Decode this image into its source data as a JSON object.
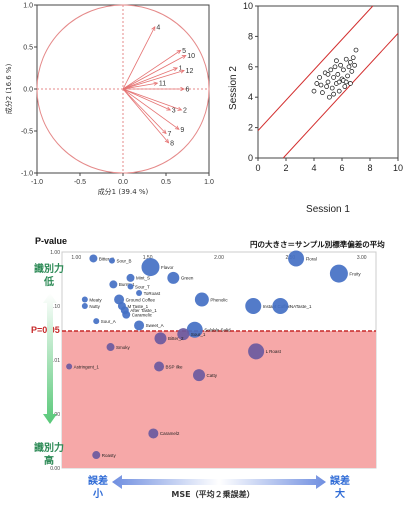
{
  "pca": {
    "type": "scatter",
    "xlabel": "成分1 (39.4 %)",
    "ylabel": "成分2 (16.6 %)",
    "xlim": [
      -1.0,
      1.0
    ],
    "ylim": [
      -1.0,
      1.0
    ],
    "xticks": [
      "-1.0",
      "-0.5",
      "0.0",
      "0.5",
      "1.0"
    ],
    "yticks": [
      "1.0",
      "0.5",
      "0.0",
      "-0.5",
      "-1.0"
    ],
    "loadings": [
      {
        "label": "4",
        "x": 0.37,
        "y": 0.74
      },
      {
        "label": "5",
        "x": 0.67,
        "y": 0.46
      },
      {
        "label": "10",
        "x": 0.73,
        "y": 0.4
      },
      {
        "label": "1",
        "x": 0.63,
        "y": 0.25
      },
      {
        "label": "12",
        "x": 0.71,
        "y": 0.22
      },
      {
        "label": "11",
        "x": 0.4,
        "y": 0.07
      },
      {
        "label": "6",
        "x": 0.71,
        "y": 0.0
      },
      {
        "label": "3",
        "x": 0.55,
        "y": -0.25
      },
      {
        "label": "2",
        "x": 0.68,
        "y": -0.25
      },
      {
        "label": "9",
        "x": 0.65,
        "y": -0.48
      },
      {
        "label": "7",
        "x": 0.5,
        "y": -0.53
      },
      {
        "label": "8",
        "x": 0.53,
        "y": -0.64
      }
    ]
  },
  "session": {
    "type": "scatter",
    "xlabel": "Session 1",
    "ylabel": "Session 2",
    "xlim": [
      0,
      10
    ],
    "ylim": [
      0,
      10
    ],
    "xticks": [
      "0",
      "2",
      "4",
      "6",
      "8",
      "10"
    ],
    "yticks": [
      "10",
      "8",
      "6",
      "4",
      "2",
      "0"
    ],
    "lines": [
      {
        "from": [
          0,
          1.8
        ],
        "to": [
          8.2,
          10
        ]
      },
      {
        "from": [
          1.8,
          0
        ],
        "to": [
          10,
          8.2
        ]
      }
    ],
    "points": [
      [
        4.0,
        4.4
      ],
      [
        4.2,
        4.9
      ],
      [
        4.4,
        5.3
      ],
      [
        4.6,
        4.3
      ],
      [
        4.8,
        5.6
      ],
      [
        5.0,
        5.0
      ],
      [
        5.1,
        4.0
      ],
      [
        5.2,
        5.8
      ],
      [
        5.3,
        4.6
      ],
      [
        5.4,
        5.3
      ],
      [
        5.5,
        6.0
      ],
      [
        5.6,
        4.9
      ],
      [
        5.7,
        5.5
      ],
      [
        5.8,
        4.4
      ],
      [
        5.9,
        6.1
      ],
      [
        6.0,
        5.2
      ],
      [
        6.1,
        5.8
      ],
      [
        6.2,
        4.7
      ],
      [
        6.3,
        6.5
      ],
      [
        6.4,
        5.4
      ],
      [
        6.5,
        6.0
      ],
      [
        6.6,
        4.9
      ],
      [
        6.7,
        5.7
      ],
      [
        6.8,
        6.6
      ],
      [
        6.9,
        6.1
      ],
      [
        5.0,
        5.5
      ],
      [
        5.6,
        6.4
      ],
      [
        4.9,
        4.7
      ],
      [
        6.1,
        5.1
      ],
      [
        5.4,
        4.2
      ],
      [
        6.3,
        5.0
      ],
      [
        7.0,
        7.1
      ],
      [
        5.8,
        5.0
      ],
      [
        4.5,
        4.8
      ],
      [
        6.6,
        6.3
      ]
    ]
  },
  "bubble": {
    "type": "scatter",
    "title": "P-value",
    "legend_note": "円の大きさ＝サンプル別標準偏差の平均",
    "threshold_label": "P=0.05",
    "left_top_label": "識別力\n低",
    "left_bottom_label": "識別力\n高",
    "x_left_label": "誤差\n小",
    "x_center_label": "MSE（平均２乗誤差）",
    "x_right_label": "誤差\n大",
    "xticks": [
      "1.00",
      "1.50",
      "2.00",
      "2.50",
      "3.00"
    ],
    "yticks": [
      "1.00",
      "0.10",
      "0.01",
      "0.00",
      "0.00"
    ],
    "points": [
      {
        "label": "Bitter_1",
        "x": 1.12,
        "y": 0.97,
        "s": 4
      },
      {
        "label": "Sour_B",
        "x": 1.25,
        "y": 0.96,
        "s": 3
      },
      {
        "label": "Flavor",
        "x": 1.52,
        "y": 0.93,
        "s": 9
      },
      {
        "label": "Floral",
        "x": 2.54,
        "y": 0.97,
        "s": 8
      },
      {
        "label": "Mint_S",
        "x": 1.38,
        "y": 0.88,
        "s": 4
      },
      {
        "label": "Fruity",
        "x": 2.84,
        "y": 0.9,
        "s": 9
      },
      {
        "label": "Green",
        "x": 1.68,
        "y": 0.88,
        "s": 6
      },
      {
        "label": "Burnt_1",
        "x": 1.26,
        "y": 0.85,
        "s": 4
      },
      {
        "label": "Sour_T",
        "x": 1.38,
        "y": 0.84,
        "s": 3
      },
      {
        "label": "ToRoast",
        "x": 1.44,
        "y": 0.81,
        "s": 3
      },
      {
        "label": "Meaty",
        "x": 1.06,
        "y": 0.78,
        "s": 3
      },
      {
        "label": "Nutty",
        "x": 1.06,
        "y": 0.75,
        "s": 3
      },
      {
        "label": "Ground Coffee",
        "x": 1.3,
        "y": 0.78,
        "s": 5
      },
      {
        "label": "M Taste_1",
        "x": 1.32,
        "y": 0.75,
        "s": 4
      },
      {
        "label": "After Taste_1",
        "x": 1.34,
        "y": 0.73,
        "s": 4
      },
      {
        "label": "Caramelic",
        "x": 1.35,
        "y": 0.71,
        "s": 4
      },
      {
        "label": "Phenolic",
        "x": 1.88,
        "y": 0.78,
        "s": 7
      },
      {
        "label": "Instant Coffee",
        "x": 2.24,
        "y": 0.75,
        "s": 8
      },
      {
        "label": "NATaste_1",
        "x": 2.43,
        "y": 0.75,
        "s": 8
      },
      {
        "label": "Sour_A",
        "x": 1.14,
        "y": 0.68,
        "s": 3
      },
      {
        "label": "Sweet_A",
        "x": 1.44,
        "y": 0.66,
        "s": 5
      },
      {
        "label": "Soluble Solid",
        "x": 1.83,
        "y": 0.64,
        "s": 8
      },
      {
        "label": "Sour_1",
        "x": 1.75,
        "y": 0.62,
        "s": 6
      },
      {
        "label": "Bitter_2",
        "x": 1.59,
        "y": 0.6,
        "s": 6
      },
      {
        "label": "Smoky",
        "x": 1.24,
        "y": 0.56,
        "s": 4
      },
      {
        "label": "L Roast",
        "x": 2.26,
        "y": 0.54,
        "s": 8
      },
      {
        "label": "Astringent_1",
        "x": 0.95,
        "y": 0.47,
        "s": 3
      },
      {
        "label": "BSP ilke",
        "x": 1.58,
        "y": 0.47,
        "s": 5
      },
      {
        "label": "Catty",
        "x": 1.86,
        "y": 0.43,
        "s": 6
      },
      {
        "label": "Caramel2",
        "x": 1.54,
        "y": 0.16,
        "s": 5
      },
      {
        "label": "Roasty",
        "x": 1.14,
        "y": 0.06,
        "s": 4
      }
    ]
  }
}
